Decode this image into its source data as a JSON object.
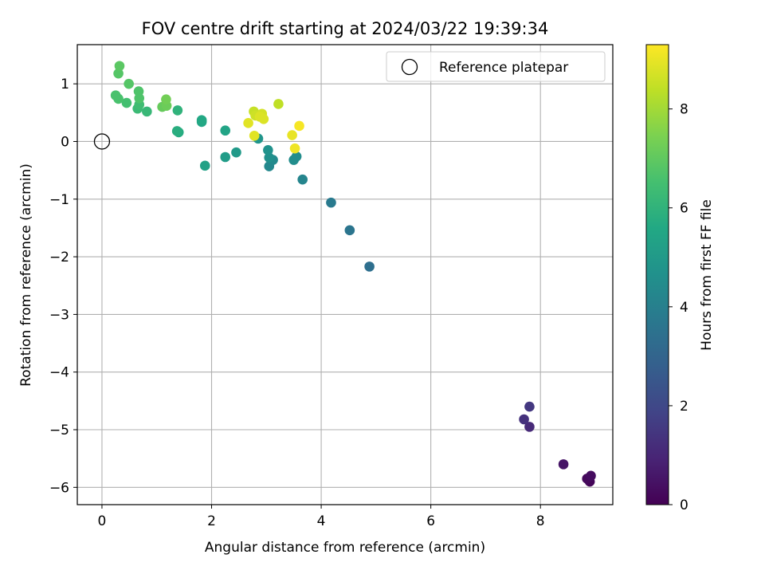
{
  "chart_data": {
    "type": "scatter",
    "title": "FOV centre drift starting at 2024/03/22 19:39:34",
    "xlabel": "Angular distance from reference (arcmin)",
    "ylabel": "Rotation from reference (arcmin)",
    "xlim": [
      -0.45,
      9.32
    ],
    "ylim": [
      -6.3,
      1.68
    ],
    "xticks": [
      0,
      2,
      4,
      6,
      8
    ],
    "yticks": [
      1,
      0,
      -1,
      -2,
      -3,
      -4,
      -5,
      -6
    ],
    "xtick_labels": [
      "0",
      "2",
      "4",
      "6",
      "8"
    ],
    "ytick_labels": [
      "1",
      "0",
      "−1",
      "−2",
      "−3",
      "−4",
      "−5",
      "−6"
    ],
    "grid": true,
    "legend": {
      "position": "top-right",
      "entries": [
        {
          "label": "Reference platepar",
          "marker": "open-circle"
        }
      ]
    },
    "reference_point": {
      "x": 0,
      "y": 0
    },
    "colorbar": {
      "label": "Hours from first FF file",
      "colormap": "viridis",
      "range": [
        0,
        9.3
      ],
      "ticks": [
        0,
        2,
        4,
        6,
        8
      ],
      "tick_labels": [
        "0",
        "2",
        "4",
        "6",
        "8"
      ]
    },
    "points": [
      {
        "x": 8.9,
        "y": -5.9,
        "c": 0.1
      },
      {
        "x": 8.85,
        "y": -5.85,
        "c": 0.2
      },
      {
        "x": 8.92,
        "y": -5.8,
        "c": 0.3
      },
      {
        "x": 8.42,
        "y": -5.6,
        "c": 0.5
      },
      {
        "x": 7.8,
        "y": -4.95,
        "c": 1.1
      },
      {
        "x": 7.7,
        "y": -4.82,
        "c": 1.3
      },
      {
        "x": 7.8,
        "y": -4.6,
        "c": 1.5
      },
      {
        "x": 4.88,
        "y": -2.17,
        "c": 3.4
      },
      {
        "x": 4.52,
        "y": -1.54,
        "c": 3.6
      },
      {
        "x": 4.18,
        "y": -1.06,
        "c": 3.8
      },
      {
        "x": 3.66,
        "y": -0.66,
        "c": 4.2
      },
      {
        "x": 3.05,
        "y": -0.43,
        "c": 4.3
      },
      {
        "x": 3.12,
        "y": -0.32,
        "c": 4.4
      },
      {
        "x": 3.5,
        "y": -0.32,
        "c": 4.5
      },
      {
        "x": 3.55,
        "y": -0.26,
        "c": 4.5
      },
      {
        "x": 3.05,
        "y": -0.28,
        "c": 4.6
      },
      {
        "x": 3.03,
        "y": -0.15,
        "c": 4.7
      },
      {
        "x": 2.85,
        "y": 0.05,
        "c": 4.8
      },
      {
        "x": 2.45,
        "y": -0.19,
        "c": 5.0
      },
      {
        "x": 2.25,
        "y": -0.27,
        "c": 5.1
      },
      {
        "x": 1.88,
        "y": -0.42,
        "c": 5.3
      },
      {
        "x": 2.25,
        "y": 0.19,
        "c": 5.4
      },
      {
        "x": 1.82,
        "y": 0.34,
        "c": 5.5
      },
      {
        "x": 1.82,
        "y": 0.37,
        "c": 5.6
      },
      {
        "x": 1.4,
        "y": 0.16,
        "c": 5.7
      },
      {
        "x": 1.37,
        "y": 0.18,
        "c": 5.8
      },
      {
        "x": 1.38,
        "y": 0.54,
        "c": 6.0
      },
      {
        "x": 0.82,
        "y": 0.52,
        "c": 6.2
      },
      {
        "x": 0.65,
        "y": 0.57,
        "c": 6.3
      },
      {
        "x": 0.68,
        "y": 0.64,
        "c": 6.4
      },
      {
        "x": 0.45,
        "y": 0.67,
        "c": 6.5
      },
      {
        "x": 0.3,
        "y": 0.74,
        "c": 6.6
      },
      {
        "x": 0.25,
        "y": 0.8,
        "c": 6.6
      },
      {
        "x": 0.68,
        "y": 0.75,
        "c": 6.7
      },
      {
        "x": 0.67,
        "y": 0.87,
        "c": 6.7
      },
      {
        "x": 0.49,
        "y": 1.0,
        "c": 6.8
      },
      {
        "x": 0.3,
        "y": 1.18,
        "c": 6.8
      },
      {
        "x": 0.32,
        "y": 1.31,
        "c": 6.9
      },
      {
        "x": 1.1,
        "y": 0.6,
        "c": 7.1
      },
      {
        "x": 1.18,
        "y": 0.62,
        "c": 7.2
      },
      {
        "x": 1.17,
        "y": 0.73,
        "c": 7.3
      },
      {
        "x": 3.22,
        "y": 0.65,
        "c": 8.4
      },
      {
        "x": 2.77,
        "y": 0.52,
        "c": 8.5
      },
      {
        "x": 2.8,
        "y": 0.45,
        "c": 8.6
      },
      {
        "x": 2.92,
        "y": 0.48,
        "c": 8.7
      },
      {
        "x": 2.88,
        "y": 0.43,
        "c": 8.8
      },
      {
        "x": 2.95,
        "y": 0.39,
        "c": 8.8
      },
      {
        "x": 2.67,
        "y": 0.32,
        "c": 8.9
      },
      {
        "x": 2.78,
        "y": 0.1,
        "c": 8.9
      },
      {
        "x": 3.47,
        "y": 0.11,
        "c": 9.0
      },
      {
        "x": 3.52,
        "y": -0.12,
        "c": 9.1
      },
      {
        "x": 3.6,
        "y": 0.27,
        "c": 9.2
      }
    ]
  }
}
